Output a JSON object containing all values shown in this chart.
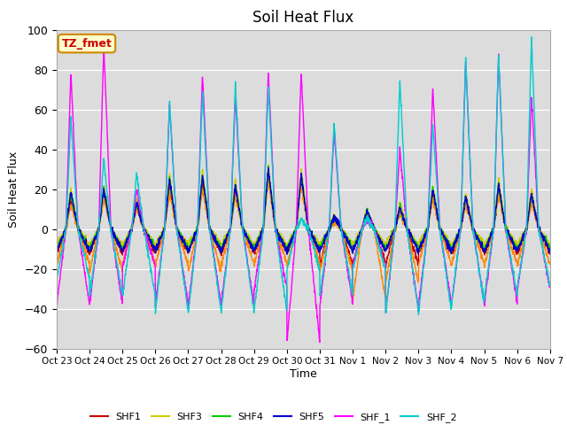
{
  "title": "Soil Heat Flux",
  "ylabel": "Soil Heat Flux",
  "xlabel": "Time",
  "ylim": [
    -60,
    100
  ],
  "bg_color": "#dcdcdc",
  "annotation_text": "TZ_fmet",
  "annotation_bg": "#ffffcc",
  "annotation_border": "#cc8800",
  "annotation_text_color": "#cc0000",
  "series_colors": {
    "SHF1": "#cc0000",
    "SHF2": "#ff8800",
    "SHF3": "#cccc00",
    "SHF4": "#00cc00",
    "SHF5": "#0000cc",
    "SHF_1": "#ff00ff",
    "SHF_2": "#00cccc"
  },
  "xtick_labels": [
    "Oct 23",
    "Oct 24",
    "Oct 25",
    "Oct 26",
    "Oct 27",
    "Oct 28",
    "Oct 29",
    "Oct 30",
    "Oct 31",
    "Nov 1",
    "Nov 2",
    "Nov 3",
    "Nov 4",
    "Nov 5",
    "Nov 6",
    "Nov 7"
  ],
  "n_days": 15,
  "ppd": 144,
  "peak_day_amplitudes": {
    "SHF1": [
      15,
      18,
      12,
      22,
      24,
      20,
      28,
      25,
      5,
      8,
      10,
      18,
      15,
      20,
      16
    ],
    "SHF2": [
      12,
      15,
      10,
      18,
      20,
      17,
      24,
      22,
      4,
      6,
      8,
      15,
      12,
      17,
      13
    ],
    "SHF3": [
      20,
      22,
      15,
      28,
      30,
      25,
      32,
      30,
      7,
      10,
      13,
      22,
      18,
      25,
      20
    ],
    "SHF4": [
      18,
      20,
      13,
      25,
      27,
      22,
      30,
      27,
      6,
      9,
      11,
      20,
      16,
      22,
      18
    ],
    "SHF5": [
      18,
      20,
      13,
      25,
      27,
      22,
      30,
      27,
      6,
      9,
      11,
      20,
      16,
      22,
      18
    ],
    "SHF_1": [
      79,
      93,
      20,
      62,
      78,
      67,
      79,
      79,
      49,
      5,
      40,
      71,
      85,
      87,
      67
    ],
    "SHF_2": [
      56,
      35,
      28,
      64,
      69,
      72,
      72,
      5,
      53,
      5,
      75,
      52,
      86,
      88,
      96
    ]
  },
  "night_vals": {
    "SHF1": -12,
    "SHF2": -18,
    "SHF3": -8,
    "SHF4": -10,
    "SHF5": -11,
    "SHF_1": -38,
    "SHF_2": -42
  },
  "night_variation": {
    "SHF1": [
      1.0,
      1.0,
      1.0,
      1.0,
      1.0,
      1.0,
      1.0,
      1.0,
      1.5,
      1.5,
      1.5,
      1.0,
      1.0,
      1.0,
      1.0
    ],
    "SHF2": [
      1.0,
      1.2,
      1.0,
      1.0,
      1.2,
      1.0,
      1.0,
      1.0,
      1.2,
      2.0,
      1.5,
      1.0,
      1.0,
      1.0,
      1.0
    ],
    "SHF3": [
      1.0,
      1.0,
      1.0,
      1.0,
      1.0,
      1.0,
      1.0,
      1.0,
      1.0,
      1.0,
      1.0,
      1.0,
      1.0,
      1.0,
      1.0
    ],
    "SHF4": [
      1.0,
      1.0,
      1.0,
      1.0,
      1.0,
      1.0,
      1.0,
      1.0,
      1.0,
      1.0,
      1.0,
      1.0,
      1.0,
      1.0,
      1.0
    ],
    "SHF5": [
      1.0,
      1.0,
      1.0,
      1.0,
      1.0,
      1.0,
      1.0,
      1.0,
      1.0,
      1.0,
      1.0,
      1.0,
      1.0,
      1.0,
      1.0
    ],
    "SHF_1": [
      1.0,
      1.0,
      0.5,
      1.0,
      1.0,
      1.0,
      0.8,
      1.5,
      1.0,
      0.5,
      1.1,
      1.0,
      1.0,
      1.0,
      0.8
    ],
    "SHF_2": [
      0.6,
      0.8,
      0.8,
      1.0,
      1.0,
      1.0,
      1.0,
      0.5,
      0.8,
      0.5,
      1.0,
      1.0,
      0.9,
      0.8,
      0.7
    ]
  }
}
